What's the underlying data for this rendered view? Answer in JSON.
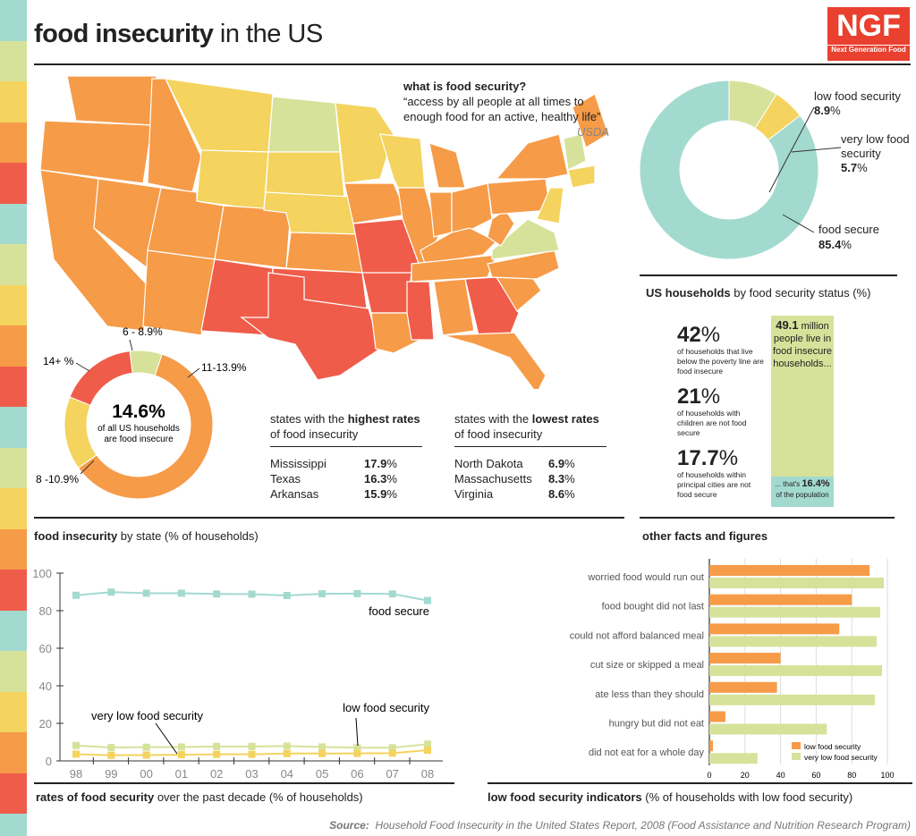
{
  "header": {
    "title_bold": "food insecurity",
    "title_rest": " in the US",
    "logo_text": "NGF",
    "logo_sub": "Next Generation Food"
  },
  "colors": {
    "teal": "#a3dacf",
    "light_green": "#d6e29a",
    "yellow": "#f4d35e",
    "orange": "#f69b48",
    "red": "#ef5c4a"
  },
  "definition": {
    "heading": "what is food security?",
    "quote": "“access by all people at all times to enough food for an active, healthy life”",
    "source": "USDA"
  },
  "map": {
    "caption_bold": "food insecurity",
    "caption_rest": " by state (% of households)"
  },
  "chart_data": [
    {
      "type": "pie",
      "title": "US households by food security status (%)",
      "donut": true,
      "slices": [
        {
          "label": "low food security",
          "value": 8.9
        },
        {
          "label": "very low food security",
          "value": 5.7
        },
        {
          "label": "food secure",
          "value": 85.4
        }
      ]
    },
    {
      "type": "pie",
      "donut": true,
      "center_value": "14.6%",
      "center_text": "of all US households are food insecure",
      "slices": [
        {
          "label": "6 - 8.9%",
          "share": 0.07
        },
        {
          "label": "11-13.9%",
          "share": 0.6
        },
        {
          "label": "8 -10.9%",
          "share": 0.16
        },
        {
          "label": "14+ %",
          "share": 0.17
        }
      ]
    },
    {
      "type": "line",
      "title": "rates of food security over the past decade (% of households)",
      "ylim": [
        0,
        100
      ],
      "yticks": [
        0,
        20,
        40,
        60,
        80,
        100
      ],
      "x": [
        "98",
        "99",
        "00",
        "01",
        "02",
        "03",
        "04",
        "05",
        "06",
        "07",
        "08"
      ],
      "series": [
        {
          "name": "food secure",
          "values": [
            88.2,
            89.9,
            89.3,
            89.3,
            88.9,
            88.8,
            88.1,
            89.0,
            89.1,
            88.9,
            85.4
          ]
        },
        {
          "name": "low food security",
          "values": [
            8.2,
            7.1,
            7.3,
            7.4,
            7.7,
            7.7,
            7.9,
            7.4,
            7.0,
            7.0,
            8.9
          ]
        },
        {
          "name": "very low food security",
          "values": [
            3.6,
            3.0,
            3.1,
            3.3,
            3.5,
            3.5,
            3.9,
            3.9,
            4.0,
            4.1,
            5.7
          ]
        }
      ]
    },
    {
      "type": "bar",
      "orientation": "horizontal",
      "title": "low food security indicators (% of households with low food security)",
      "xlim": [
        0,
        100
      ],
      "xticks": [
        0,
        20,
        40,
        60,
        80,
        100
      ],
      "legend": "bottom-right",
      "categories": [
        "worried food would run out",
        "food bought did not last",
        "could not afford balanced meal",
        "cut size or skipped a meal",
        "ate less than they should",
        "hungry but did not eat",
        "did not eat for a whole day"
      ],
      "series": [
        {
          "name": "low food security",
          "values": [
            90,
            80,
            73,
            40,
            38,
            9,
            2
          ]
        },
        {
          "name": "very low food security",
          "values": [
            98,
            96,
            94,
            97,
            93,
            66,
            27
          ]
        }
      ]
    }
  ],
  "donut_labels": {
    "low_label": "low food security",
    "low_value": "8.9",
    "very_low_label": "very low food\nsecurity",
    "very_low_value": "5.7",
    "secure_label": "food secure",
    "secure_value": "85.4",
    "pct": "%",
    "caption_bold": "US households",
    "caption_rest": " by food security status (%)"
  },
  "highest": {
    "title_pre": "states with the ",
    "title_bold": "highest rates",
    "title_post": "of food insecurity",
    "rows": [
      {
        "state": "Mississippi",
        "value": "17.9"
      },
      {
        "state": "Texas",
        "value": "16.3"
      },
      {
        "state": "Arkansas",
        "value": "15.9"
      }
    ]
  },
  "lowest": {
    "title_pre": "states with the ",
    "title_bold": "lowest rates",
    "title_post": "of food insecurity",
    "rows": [
      {
        "state": "North Dakota",
        "value": "6.9"
      },
      {
        "state": "Massachusetts",
        "value": "8.3"
      },
      {
        "state": "Virginia",
        "value": "8.6"
      }
    ]
  },
  "facts": {
    "items": [
      {
        "big": "42",
        "text": "of households that live below the poverty line are food insecure"
      },
      {
        "big": "21",
        "text": "of households with children are not food secure"
      },
      {
        "big": "17.7",
        "text": "of households within principal cities are not food secure"
      }
    ],
    "box_bold": "49.1",
    "box_rest": " million people live in food insecure households...",
    "box_bottom_pre": "... that's ",
    "box_bottom_bold": "16.4%",
    "box_bottom_post": "of the population",
    "caption": "other facts and figures"
  },
  "line_caption": {
    "bold": "rates of food security",
    "rest": " over the past decade (% of households)"
  },
  "bar_caption": {
    "bold": "low food security indicators",
    "rest": " (% of households with low food security)"
  },
  "source": {
    "label": "Source:",
    "text": "Household Food Insecurity in the United States Report, 2008 (Food Assistance and Nutrition Research Program)"
  }
}
